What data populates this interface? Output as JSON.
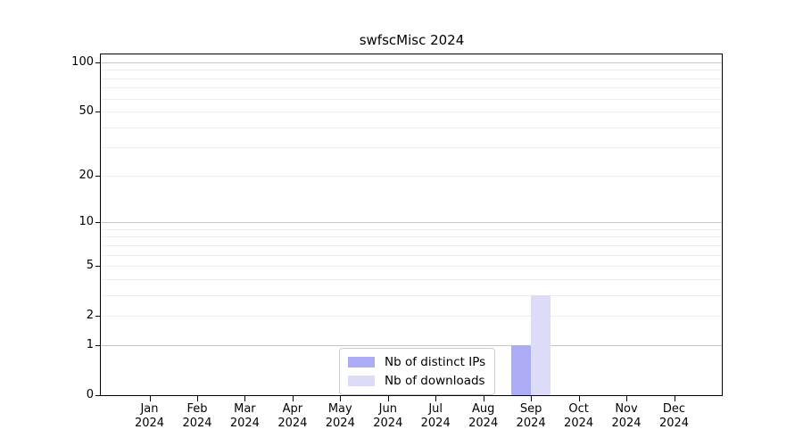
{
  "chart_data": {
    "type": "bar",
    "title": "swfscMisc 2024",
    "categories": [
      "Jan",
      "Feb",
      "Mar",
      "Apr",
      "May",
      "Jun",
      "Jul",
      "Aug",
      "Sep",
      "Oct",
      "Nov",
      "Dec"
    ],
    "category_year_suffix": "2024",
    "series": [
      {
        "name": "Nb of distinct IPs",
        "color": "#acacf4",
        "values": [
          0,
          0,
          0,
          0,
          0,
          0,
          0,
          0,
          1,
          0,
          0,
          0
        ]
      },
      {
        "name": "Nb of downloads",
        "color": "#dcdcf8",
        "values": [
          0,
          0,
          0,
          0,
          0,
          0,
          0,
          0,
          3,
          0,
          0,
          0
        ]
      }
    ],
    "xlabel": "",
    "ylabel": "",
    "y_axis": {
      "scale": "log10(value+1)",
      "tick_values": [
        0,
        1,
        2,
        5,
        10,
        20,
        50,
        100
      ],
      "major_gridline_values": [
        1,
        10,
        100
      ],
      "minor_gridline_values": [
        2,
        3,
        4,
        5,
        6,
        7,
        8,
        9,
        20,
        30,
        40,
        50,
        60,
        70,
        80,
        90
      ],
      "ylim": [
        0,
        113
      ]
    },
    "grid": true,
    "legend_position": "lower center"
  },
  "colors": {
    "background": "#ffffff",
    "axis": "#000000",
    "major_grid": "#c6c6c6",
    "minor_grid": "#ededed",
    "legend_border": "#cccccc",
    "series_distinct_ips": "#acacf4",
    "series_downloads": "#dcdcf8"
  }
}
